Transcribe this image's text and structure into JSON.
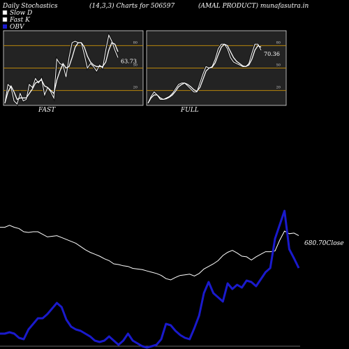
{
  "header": {
    "left": "Daily Stochastics",
    "params": "(14,3,3) Charts for 506597",
    "right": "(AMAL PRODUCT) munafasutra.in"
  },
  "legend": [
    {
      "label": "Slow  D",
      "color": "#ffffff"
    },
    {
      "label": "Fast K",
      "color": "#ffffff"
    },
    {
      "label": "OBV",
      "color": "#1a1acc"
    }
  ],
  "colors": {
    "background": "#000000",
    "panel": "#232323",
    "level_line": "#b8860b",
    "obv": "#1a1acc",
    "price": "#ffffff"
  },
  "chart_data": [
    {
      "type": "line",
      "name": "FAST",
      "ylim": [
        0,
        100
      ],
      "levels": [
        20,
        50,
        80
      ],
      "tick_labels": [
        "80",
        "50",
        "20"
      ],
      "last_value_label": "63.73",
      "series": [
        {
          "values": [
            3,
            28,
            24,
            6,
            2,
            16,
            6,
            8,
            28,
            24,
            36,
            30,
            36,
            14,
            24,
            18,
            10,
            62,
            56,
            54,
            38,
            64,
            84,
            86,
            84,
            84,
            68,
            50,
            56,
            52,
            46,
            54,
            50,
            74,
            94,
            86,
            74,
            64
          ]
        },
        {
          "values": [
            3,
            18,
            26,
            18,
            8,
            10,
            10,
            10,
            16,
            22,
            30,
            32,
            34,
            26,
            24,
            20,
            16,
            34,
            46,
            56,
            50,
            52,
            64,
            78,
            84,
            84,
            78,
            66,
            58,
            54,
            52,
            52,
            52,
            58,
            74,
            84,
            82,
            72
          ]
        }
      ]
    },
    {
      "type": "line",
      "name": "FULL",
      "ylim": [
        0,
        100
      ],
      "levels": [
        20,
        50,
        80
      ],
      "tick_labels": [
        "80",
        "50",
        "20"
      ],
      "last_value_label": "70.36",
      "series": [
        {
          "values": [
            3,
            12,
            18,
            14,
            8,
            8,
            10,
            12,
            16,
            22,
            28,
            30,
            30,
            26,
            22,
            18,
            18,
            30,
            42,
            52,
            50,
            52,
            62,
            76,
            82,
            82,
            76,
            64,
            58,
            56,
            54,
            52,
            52,
            56,
            70,
            82,
            82,
            74
          ]
        },
        {
          "values": [
            3,
            10,
            14,
            14,
            10,
            8,
            9,
            11,
            14,
            19,
            25,
            28,
            30,
            28,
            25,
            21,
            19,
            24,
            35,
            46,
            50,
            51,
            57,
            68,
            78,
            82,
            80,
            72,
            64,
            59,
            56,
            53,
            52,
            54,
            62,
            74,
            80,
            78
          ]
        }
      ]
    },
    {
      "type": "line",
      "name": "OBV and Close",
      "last_value_label": "680.70Close",
      "series": [
        {
          "name": "OBV",
          "values": [
            14,
            14,
            16,
            14,
            8,
            6,
            20,
            28,
            36,
            36,
            42,
            50,
            58,
            52,
            34,
            24,
            20,
            18,
            14,
            10,
            4,
            2,
            4,
            10,
            4,
            -2,
            4,
            14,
            4,
            0,
            -4,
            -6,
            -4,
            -2,
            6,
            28,
            26,
            18,
            12,
            8,
            6,
            22,
            40,
            72,
            88,
            72,
            66,
            60,
            86,
            78,
            84,
            80,
            90,
            88,
            82,
            92,
            102,
            108,
            150,
            170,
            190,
            135,
            122,
            108
          ]
        },
        {
          "name": "Close",
          "values": [
            240,
            240,
            246,
            240,
            236,
            226,
            224,
            226,
            226,
            218,
            210,
            212,
            214,
            208,
            202,
            196,
            190,
            180,
            170,
            162,
            156,
            150,
            142,
            136,
            126,
            124,
            120,
            118,
            112,
            110,
            108,
            104,
            100,
            96,
            90,
            80,
            76,
            84,
            90,
            92,
            94,
            88,
            96,
            110,
            118,
            126,
            136,
            152,
            162,
            168,
            160,
            150,
            148,
            138,
            148,
            156,
            164,
            164,
            166,
            200,
            228,
            220,
            222,
            214
          ]
        }
      ]
    }
  ],
  "panels": {
    "fast_label": "FAST",
    "full_label": "FULL"
  }
}
